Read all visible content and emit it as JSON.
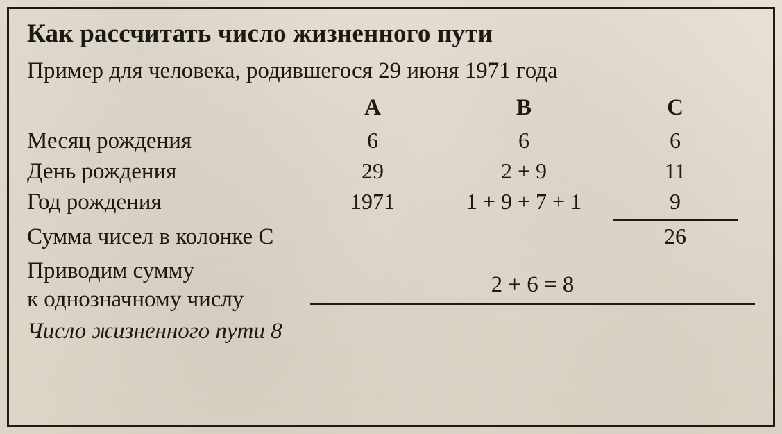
{
  "colors": {
    "text": "#1c1814",
    "border": "#1f1a14",
    "paper_bg_top": "#e7e0d3",
    "paper_bg_bottom": "#ded6c7"
  },
  "typography": {
    "family": "Book Antiqua / Palatino serif",
    "title_pt": 28,
    "body_pt": 25
  },
  "title": "Как рассчитать число жизненного пути",
  "subtitle": "Пример для человека, родившегося 29 июня 1971 года",
  "columns": {
    "a": "A",
    "b": "B",
    "c": "C"
  },
  "rows": {
    "month": {
      "label": "Месяц рождения",
      "a": "6",
      "b": "6",
      "c": "6"
    },
    "day": {
      "label": "День рождения",
      "a": "29",
      "b": "2 + 9",
      "c": "11"
    },
    "year": {
      "label": "Год рождения",
      "a": "1971",
      "b": "1 + 9 + 7 + 1",
      "c": "9"
    }
  },
  "sum_row": {
    "label": "Сумма чисел в колонке С",
    "c": "26"
  },
  "reduce": {
    "label_line1": "Приводим сумму",
    "label_line2": "к однозначному числу",
    "equation": "2 + 6 = 8"
  },
  "result": "Число жизненного пути 8"
}
